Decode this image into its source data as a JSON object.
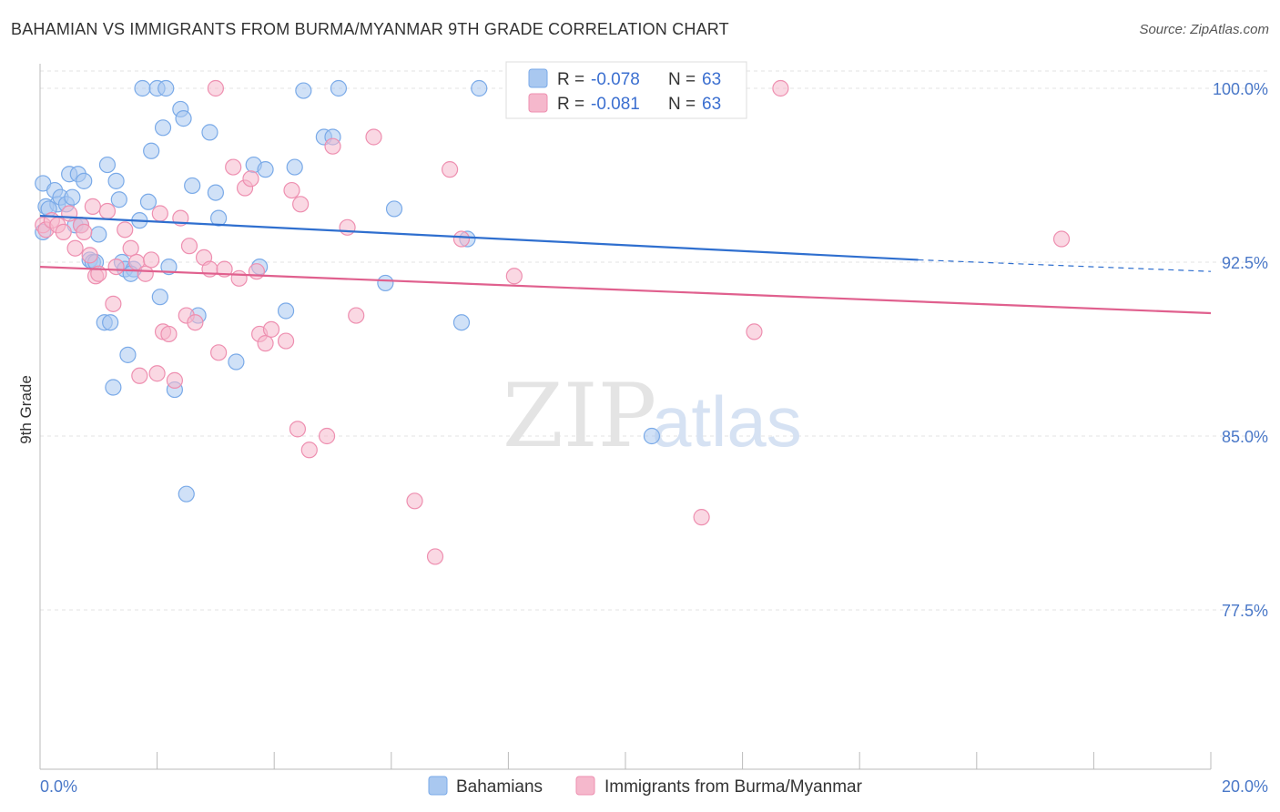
{
  "title": "BAHAMIAN VS IMMIGRANTS FROM BURMA/MYANMAR 9TH GRADE CORRELATION CHART",
  "source": "Source: ZipAtlas.com",
  "watermark": {
    "zip": "ZIP",
    "atlas": "atlas"
  },
  "legend_box": {
    "rows": [
      {
        "r_label": "R = ",
        "r_value": "-0.078",
        "n_label": "N = ",
        "n_value": "63",
        "color": "#a9c8f0"
      },
      {
        "r_label": "R = ",
        "r_value": "-0.081",
        "n_label": "N = ",
        "n_value": "63",
        "color": "#f5b8cc"
      }
    ]
  },
  "chart_data": {
    "type": "scatter",
    "title": "BAHAMIAN VS IMMIGRANTS FROM BURMA/MYANMAR 9TH GRADE CORRELATION CHART",
    "xlabel": "",
    "ylabel": "9th Grade",
    "xlim": [
      0,
      20
    ],
    "ylim": [
      70,
      100.5
    ],
    "x_tick_labels": [
      "0.0%",
      "20.0%"
    ],
    "y_ticks": [
      77.5,
      85.0,
      92.5,
      100.0
    ],
    "y_tick_labels": [
      "77.5%",
      "85.0%",
      "92.5%",
      "100.0%"
    ],
    "grid": true,
    "legend_position": "bottom",
    "series": [
      {
        "name": "Bahamians",
        "color": "#7aaae8",
        "fill": "#a9c8f0",
        "trend": {
          "x0": 0,
          "y0": 94.5,
          "x1": 15.0,
          "y1": 92.6,
          "dashed_to": 20.0,
          "dashed_y": 92.1,
          "color": "#2f6fcf"
        },
        "points": [
          [
            0.05,
            95.9
          ],
          [
            0.1,
            94.9
          ],
          [
            0.25,
            95.6
          ],
          [
            0.3,
            95.0
          ],
          [
            0.35,
            95.3
          ],
          [
            0.45,
            95.0
          ],
          [
            0.5,
            96.3
          ],
          [
            0.55,
            95.3
          ],
          [
            0.65,
            96.3
          ],
          [
            0.75,
            96.0
          ],
          [
            0.6,
            94.1
          ],
          [
            0.7,
            94.1
          ],
          [
            0.85,
            92.6
          ],
          [
            0.9,
            92.5
          ],
          [
            1.0,
            93.7
          ],
          [
            1.1,
            89.9
          ],
          [
            1.15,
            96.7
          ],
          [
            1.2,
            89.9
          ],
          [
            1.25,
            87.1
          ],
          [
            1.3,
            96.0
          ],
          [
            1.35,
            95.2
          ],
          [
            1.4,
            92.5
          ],
          [
            1.45,
            92.2
          ],
          [
            1.5,
            88.5
          ],
          [
            1.6,
            92.2
          ],
          [
            1.7,
            94.3
          ],
          [
            1.75,
            100.0
          ],
          [
            1.85,
            95.1
          ],
          [
            1.9,
            97.3
          ],
          [
            2.0,
            100.0
          ],
          [
            2.05,
            91.0
          ],
          [
            2.1,
            98.3
          ],
          [
            2.15,
            100.0
          ],
          [
            2.2,
            92.3
          ],
          [
            2.3,
            87.0
          ],
          [
            2.4,
            99.1
          ],
          [
            2.45,
            98.7
          ],
          [
            2.5,
            82.5
          ],
          [
            2.6,
            95.8
          ],
          [
            2.7,
            90.2
          ],
          [
            2.9,
            98.1
          ],
          [
            3.0,
            95.5
          ],
          [
            3.05,
            94.4
          ],
          [
            3.35,
            88.2
          ],
          [
            3.65,
            96.7
          ],
          [
            3.75,
            92.3
          ],
          [
            3.85,
            96.5
          ],
          [
            4.2,
            90.4
          ],
          [
            4.35,
            96.6
          ],
          [
            4.5,
            99.9
          ],
          [
            4.85,
            97.9
          ],
          [
            5.0,
            97.9
          ],
          [
            5.1,
            100.0
          ],
          [
            5.9,
            91.6
          ],
          [
            6.05,
            94.8
          ],
          [
            7.2,
            89.9
          ],
          [
            7.3,
            93.5
          ],
          [
            7.5,
            100.0
          ],
          [
            10.45,
            85.0
          ],
          [
            0.05,
            93.8
          ],
          [
            0.15,
            94.8
          ],
          [
            0.95,
            92.5
          ],
          [
            1.55,
            92.0
          ]
        ]
      },
      {
        "name": "Immigrants from Burma/Myanmar",
        "color": "#ee8fb0",
        "fill": "#f5b8cc",
        "trend": {
          "x0": 0,
          "y0": 92.3,
          "x1": 20.0,
          "y1": 90.3,
          "color": "#e0608e"
        },
        "points": [
          [
            0.05,
            94.1
          ],
          [
            0.1,
            93.9
          ],
          [
            0.2,
            94.3
          ],
          [
            0.3,
            94.1
          ],
          [
            0.4,
            93.8
          ],
          [
            0.5,
            94.6
          ],
          [
            0.6,
            93.1
          ],
          [
            0.7,
            94.1
          ],
          [
            0.75,
            93.8
          ],
          [
            0.85,
            92.8
          ],
          [
            0.9,
            94.9
          ],
          [
            0.95,
            91.9
          ],
          [
            1.0,
            92.0
          ],
          [
            1.15,
            94.7
          ],
          [
            1.25,
            90.7
          ],
          [
            1.3,
            92.3
          ],
          [
            1.45,
            93.9
          ],
          [
            1.55,
            93.1
          ],
          [
            1.65,
            92.5
          ],
          [
            1.7,
            87.6
          ],
          [
            1.8,
            92.0
          ],
          [
            1.9,
            92.6
          ],
          [
            2.0,
            87.7
          ],
          [
            2.05,
            94.6
          ],
          [
            2.1,
            89.5
          ],
          [
            2.2,
            89.4
          ],
          [
            2.3,
            87.4
          ],
          [
            2.4,
            94.4
          ],
          [
            2.5,
            90.2
          ],
          [
            2.55,
            93.2
          ],
          [
            2.65,
            89.9
          ],
          [
            2.8,
            92.7
          ],
          [
            2.9,
            92.2
          ],
          [
            3.0,
            100.0
          ],
          [
            3.05,
            88.6
          ],
          [
            3.15,
            92.2
          ],
          [
            3.3,
            96.6
          ],
          [
            3.4,
            91.8
          ],
          [
            3.5,
            95.7
          ],
          [
            3.6,
            96.1
          ],
          [
            3.7,
            92.1
          ],
          [
            3.75,
            89.4
          ],
          [
            3.85,
            89.0
          ],
          [
            3.95,
            89.6
          ],
          [
            4.2,
            89.1
          ],
          [
            4.3,
            95.6
          ],
          [
            4.4,
            85.3
          ],
          [
            4.45,
            95.0
          ],
          [
            4.6,
            84.4
          ],
          [
            4.9,
            85.0
          ],
          [
            5.0,
            97.5
          ],
          [
            5.25,
            94.0
          ],
          [
            5.4,
            90.2
          ],
          [
            5.7,
            97.9
          ],
          [
            6.4,
            82.2
          ],
          [
            6.75,
            79.8
          ],
          [
            7.0,
            96.5
          ],
          [
            7.2,
            93.5
          ],
          [
            8.1,
            91.9
          ],
          [
            11.3,
            81.5
          ],
          [
            12.2,
            89.5
          ],
          [
            12.65,
            100.0
          ],
          [
            17.45,
            93.5
          ]
        ]
      }
    ]
  },
  "bottom_legend": [
    {
      "label": "Bahamians",
      "color": "#a9c8f0"
    },
    {
      "label": "Immigrants from Burma/Myanmar",
      "color": "#f5b8cc"
    }
  ]
}
